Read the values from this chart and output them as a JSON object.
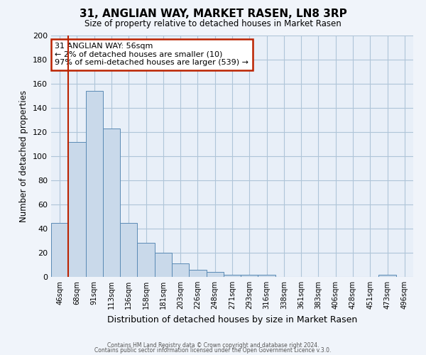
{
  "title": "31, ANGLIAN WAY, MARKET RASEN, LN8 3RP",
  "subtitle": "Size of property relative to detached houses in Market Rasen",
  "xlabel": "Distribution of detached houses by size in Market Rasen",
  "ylabel": "Number of detached properties",
  "bar_labels": [
    "46sqm",
    "68sqm",
    "91sqm",
    "113sqm",
    "136sqm",
    "158sqm",
    "181sqm",
    "203sqm",
    "226sqm",
    "248sqm",
    "271sqm",
    "293sqm",
    "316sqm",
    "338sqm",
    "361sqm",
    "383sqm",
    "406sqm",
    "428sqm",
    "451sqm",
    "473sqm",
    "496sqm"
  ],
  "bar_values": [
    45,
    112,
    154,
    123,
    45,
    28,
    20,
    11,
    6,
    4,
    2,
    2,
    2,
    0,
    0,
    0,
    0,
    0,
    0,
    2,
    0
  ],
  "bar_color": "#c9d9ea",
  "bar_edge_color": "#5a8ab5",
  "grid_color": "#afc5d8",
  "background_color": "#e8eff8",
  "fig_background": "#f0f4fa",
  "vline_color": "#bb2200",
  "vline_x_index": 1,
  "annotation_text": "31 ANGLIAN WAY: 56sqm\n← 2% of detached houses are smaller (10)\n97% of semi-detached houses are larger (539) →",
  "annotation_box_edge": "#bb2200",
  "ylim": [
    0,
    200
  ],
  "yticks": [
    0,
    20,
    40,
    60,
    80,
    100,
    120,
    140,
    160,
    180,
    200
  ],
  "footer1": "Contains HM Land Registry data © Crown copyright and database right 2024.",
  "footer2": "Contains public sector information licensed under the Open Government Licence v.3.0."
}
